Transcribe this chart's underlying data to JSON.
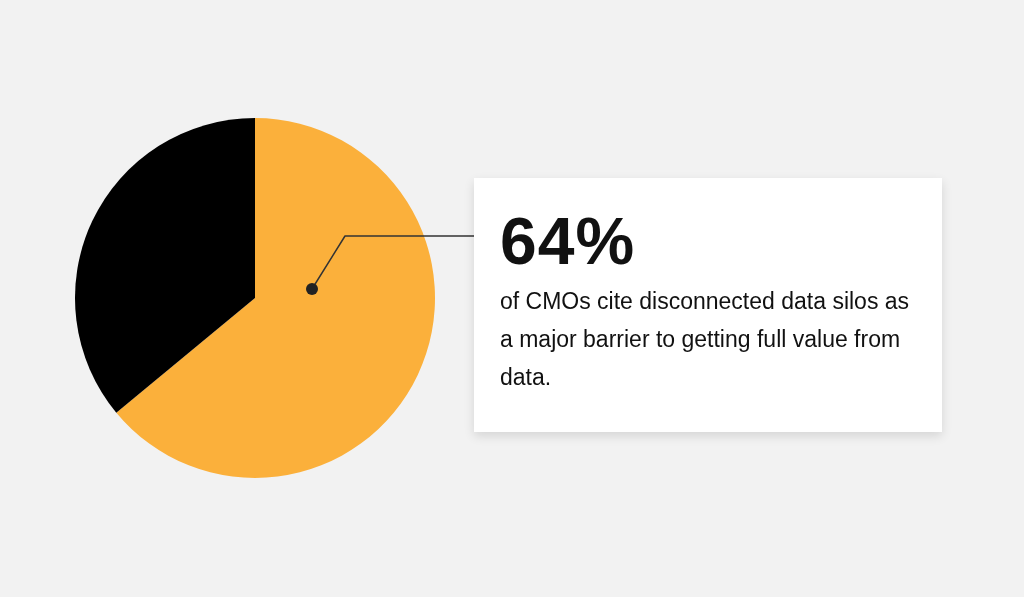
{
  "chart_data": {
    "type": "pie",
    "categories": [
      null,
      null
    ],
    "values": [
      64,
      36
    ],
    "colors": [
      "#fbb03b",
      "#000000"
    ],
    "value_labels": [
      "64%",
      null
    ],
    "annotations": [
      "of CMOs cite disconnected data silos as a major barrier to getting full value from data."
    ]
  }
}
